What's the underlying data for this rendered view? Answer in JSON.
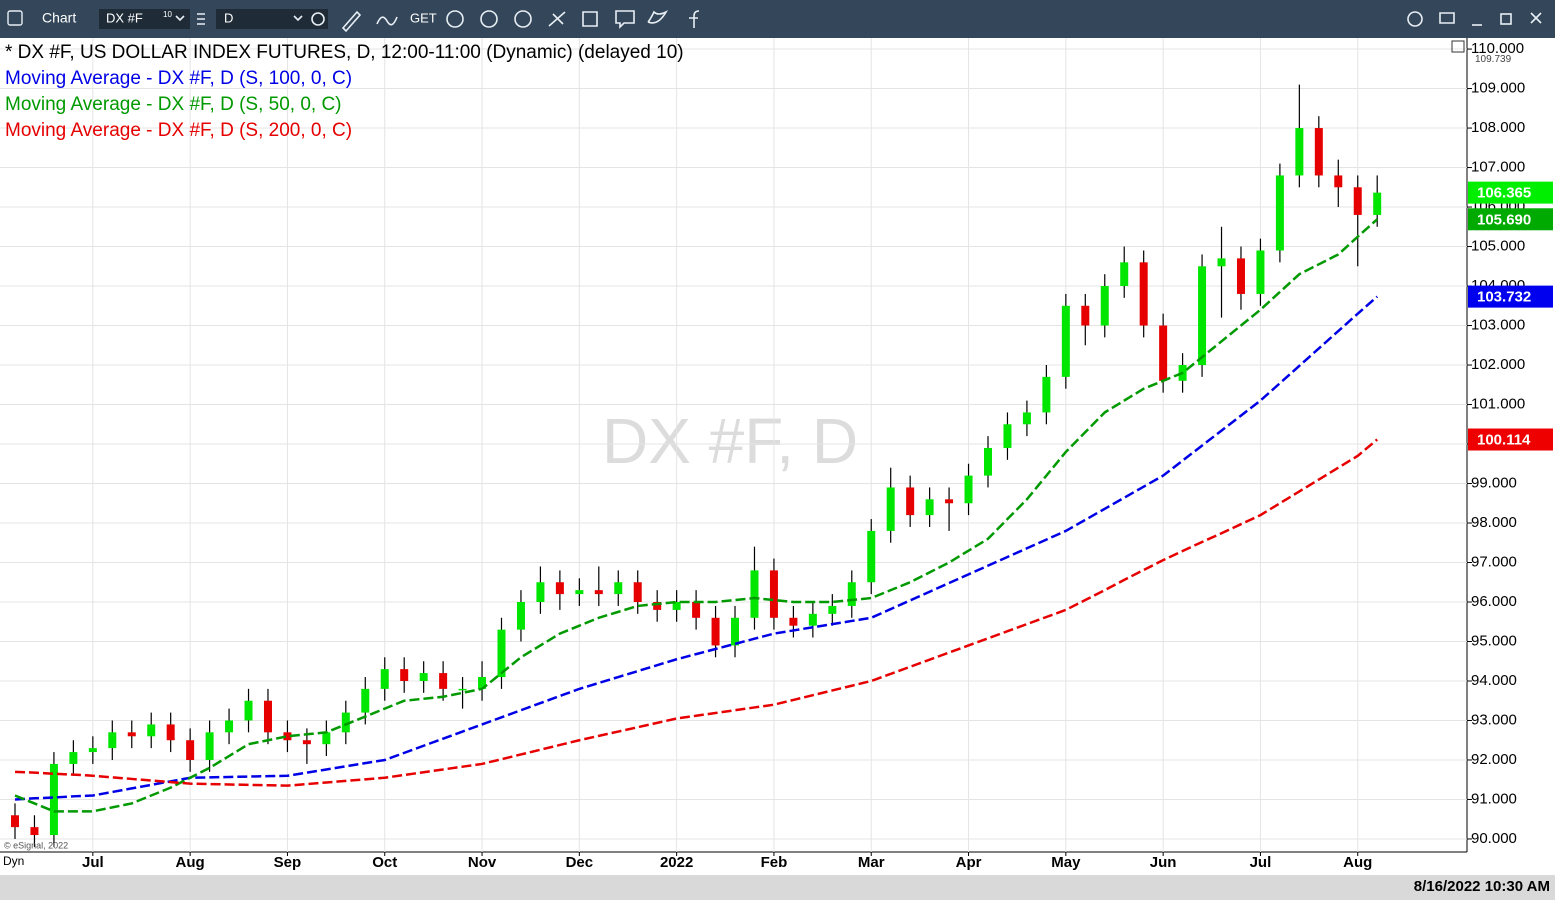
{
  "ui": {
    "window_title": "Chart",
    "symbol": "DX #F",
    "symbol_sup": "10",
    "interval": "D",
    "get_label": "GET",
    "timestamp": "8/16/2022 10:30 AM",
    "copyright": "© eSignal, 2022",
    "session_label": "Dyn"
  },
  "chart_data": {
    "type": "candlestick",
    "title": "* DX #F, US DOLLAR INDEX FUTURES, D, 12:00-11:00 (Dynamic) (delayed 10)",
    "watermark": "DX #F, D",
    "categories": [
      null,
      null,
      null,
      null,
      "Jul",
      null,
      null,
      null,
      null,
      "Aug",
      null,
      null,
      null,
      null,
      "Sep",
      null,
      null,
      null,
      null,
      "Oct",
      null,
      null,
      null,
      null,
      "Nov",
      null,
      null,
      null,
      null,
      "Dec",
      null,
      null,
      null,
      null,
      "2022",
      null,
      null,
      null,
      null,
      "Feb",
      null,
      null,
      null,
      null,
      "Mar",
      null,
      null,
      null,
      null,
      "Apr",
      null,
      null,
      null,
      null,
      "May",
      null,
      null,
      null,
      null,
      "Jun",
      null,
      null,
      null,
      null,
      "Jul",
      null,
      null,
      null,
      null,
      "Aug",
      null
    ],
    "open": [
      90.6,
      90.3,
      90.1,
      91.9,
      92.2,
      92.3,
      92.7,
      92.6,
      92.9,
      92.5,
      92.0,
      92.7,
      93.0,
      93.5,
      92.7,
      92.5,
      92.4,
      92.7,
      93.2,
      93.8,
      94.3,
      94.0,
      94.2,
      93.8,
      93.8,
      94.1,
      95.3,
      96.0,
      96.5,
      96.2,
      96.3,
      96.2,
      96.5,
      96.0,
      95.8,
      96.0,
      95.6,
      94.9,
      95.6,
      96.8,
      95.6,
      95.4,
      95.7,
      95.9,
      96.5,
      97.8,
      98.9,
      98.2,
      98.6,
      98.5,
      99.2,
      99.9,
      100.5,
      100.8,
      101.7,
      103.5,
      103.0,
      104.0,
      104.6,
      103.0,
      101.6,
      102.0,
      104.5,
      104.7,
      103.8,
      104.9,
      106.8,
      108.0,
      106.8,
      106.5,
      105.8
    ],
    "high": [
      90.9,
      90.6,
      92.2,
      92.5,
      92.6,
      93.0,
      93.0,
      93.2,
      93.2,
      92.8,
      93.0,
      93.3,
      93.8,
      93.8,
      93.0,
      92.8,
      93.0,
      93.5,
      94.1,
      94.6,
      94.6,
      94.5,
      94.5,
      94.1,
      94.5,
      95.6,
      96.3,
      96.9,
      96.8,
      96.6,
      96.9,
      96.8,
      96.8,
      96.3,
      96.3,
      96.3,
      95.9,
      95.9,
      97.4,
      97.1,
      95.9,
      96.0,
      96.2,
      96.8,
      98.1,
      99.4,
      99.2,
      98.9,
      98.9,
      99.5,
      100.2,
      100.8,
      101.1,
      102.0,
      103.8,
      103.8,
      104.3,
      105.0,
      104.9,
      103.3,
      102.3,
      104.8,
      105.5,
      105.0,
      105.2,
      107.1,
      109.1,
      108.3,
      107.2,
      106.8,
      106.8
    ],
    "low": [
      90.0,
      89.8,
      89.8,
      91.6,
      91.9,
      92.0,
      92.3,
      92.3,
      92.2,
      91.7,
      91.7,
      92.4,
      92.7,
      92.4,
      92.2,
      91.9,
      92.1,
      92.4,
      92.9,
      93.5,
      93.7,
      93.7,
      93.5,
      93.3,
      93.5,
      93.8,
      95.0,
      95.7,
      95.8,
      95.9,
      95.9,
      95.9,
      95.7,
      95.5,
      95.5,
      95.3,
      94.6,
      94.6,
      95.3,
      95.3,
      95.1,
      95.1,
      95.4,
      95.6,
      96.2,
      97.5,
      97.9,
      97.9,
      97.8,
      98.2,
      98.9,
      99.6,
      100.2,
      100.5,
      101.4,
      102.5,
      102.7,
      103.7,
      102.7,
      101.3,
      101.3,
      101.7,
      103.2,
      103.4,
      103.5,
      104.6,
      106.5,
      106.5,
      106.0,
      104.5,
      105.5
    ],
    "close": [
      90.3,
      90.1,
      91.9,
      92.2,
      92.3,
      92.7,
      92.6,
      92.9,
      92.5,
      92.0,
      92.7,
      93.0,
      93.5,
      92.7,
      92.5,
      92.4,
      92.7,
      93.2,
      93.8,
      94.3,
      94.0,
      94.2,
      93.8,
      93.8,
      94.1,
      95.3,
      96.0,
      96.5,
      96.2,
      96.3,
      96.2,
      96.5,
      96.0,
      95.8,
      96.0,
      95.6,
      94.9,
      95.6,
      96.8,
      95.6,
      95.4,
      95.7,
      95.9,
      96.5,
      97.8,
      98.9,
      98.2,
      98.6,
      98.5,
      99.2,
      99.9,
      100.5,
      100.8,
      101.7,
      103.5,
      103.0,
      104.0,
      104.6,
      103.0,
      101.6,
      102.0,
      104.5,
      104.7,
      103.8,
      104.9,
      106.8,
      108.0,
      106.8,
      106.5,
      105.8,
      106.365
    ],
    "up_color": "#00e600",
    "down_color": "#e60000",
    "series": [
      {
        "name": "Moving Average - DX #F, D (S, 100, 0, C)",
        "color": "#0000e6",
        "values": [
          91.0,
          91.03,
          91.05,
          91.08,
          91.1,
          91.19,
          91.28,
          91.37,
          91.46,
          91.55,
          91.56,
          91.57,
          91.58,
          91.59,
          91.6,
          91.68,
          91.76,
          91.84,
          91.92,
          92.0,
          92.18,
          92.36,
          92.54,
          92.72,
          92.9,
          93.08,
          93.26,
          93.44,
          93.62,
          93.8,
          93.95,
          94.1,
          94.25,
          94.4,
          94.55,
          94.68,
          94.81,
          94.94,
          95.07,
          95.2,
          95.28,
          95.36,
          95.44,
          95.52,
          95.6,
          95.82,
          96.04,
          96.26,
          96.48,
          96.7,
          96.92,
          97.14,
          97.36,
          97.58,
          97.8,
          98.08,
          98.36,
          98.64,
          98.92,
          99.2,
          99.58,
          99.96,
          100.34,
          100.72,
          101.1,
          101.54,
          101.98,
          102.42,
          102.86,
          103.3,
          103.732
        ]
      },
      {
        "name": "Moving Average - DX #F, D (S, 50, 0, C)",
        "color": "#009900",
        "values": [
          91.1,
          90.9,
          90.7,
          90.7,
          90.7,
          90.8,
          90.9,
          91.1,
          91.3,
          91.55,
          91.8,
          92.1,
          92.4,
          92.5,
          92.6,
          92.65,
          92.7,
          92.9,
          93.1,
          93.3,
          93.5,
          93.55,
          93.6,
          93.7,
          93.8,
          94.2,
          94.6,
          94.9,
          95.2,
          95.4,
          95.6,
          95.75,
          95.9,
          95.95,
          96.0,
          96.0,
          96.0,
          96.05,
          96.1,
          96.05,
          96.0,
          96.0,
          96.0,
          96.05,
          96.1,
          96.3,
          96.5,
          96.75,
          97.0,
          97.3,
          97.6,
          98.1,
          98.6,
          99.2,
          99.8,
          100.3,
          100.8,
          101.1,
          101.4,
          101.6,
          101.8,
          102.2,
          102.6,
          103.0,
          103.4,
          103.85,
          104.3,
          104.55,
          104.8,
          105.25,
          105.69
        ]
      },
      {
        "name": "Moving Average - DX #F, D (S, 200, 0, C)",
        "color": "#e60000",
        "values": [
          91.7,
          91.68,
          91.65,
          91.63,
          91.6,
          91.56,
          91.52,
          91.48,
          91.44,
          91.4,
          91.39,
          91.38,
          91.37,
          91.36,
          91.35,
          91.39,
          91.43,
          91.47,
          91.51,
          91.55,
          91.62,
          91.69,
          91.76,
          91.83,
          91.9,
          92.02,
          92.14,
          92.26,
          92.38,
          92.5,
          92.61,
          92.72,
          92.83,
          92.94,
          93.05,
          93.12,
          93.19,
          93.26,
          93.33,
          93.4,
          93.52,
          93.64,
          93.76,
          93.88,
          94.0,
          94.18,
          94.36,
          94.54,
          94.72,
          94.9,
          95.08,
          95.26,
          95.44,
          95.62,
          95.8,
          96.05,
          96.3,
          96.56,
          96.81,
          97.06,
          97.29,
          97.52,
          97.74,
          97.97,
          98.2,
          98.5,
          98.8,
          99.1,
          99.4,
          99.7,
          100.114
        ]
      }
    ],
    "ylim": [
      89.67,
      110.28
    ],
    "yticks": [
      {
        "value": 90,
        "label": "90.000"
      },
      {
        "value": 91,
        "label": "91.000"
      },
      {
        "value": 92,
        "label": "92.000"
      },
      {
        "value": 93,
        "label": "93.000"
      },
      {
        "value": 94,
        "label": "94.000"
      },
      {
        "value": 95,
        "label": "95.000"
      },
      {
        "value": 96,
        "label": "96.000"
      },
      {
        "value": 97,
        "label": "97.000"
      },
      {
        "value": 98,
        "label": "98.000"
      },
      {
        "value": 99,
        "label": "99.000"
      },
      {
        "value": 100,
        "label": "100.000"
      },
      {
        "value": 101,
        "label": "101.000"
      },
      {
        "value": 102,
        "label": "102.000"
      },
      {
        "value": 103,
        "label": "103.000"
      },
      {
        "value": 104,
        "label": "104.000"
      },
      {
        "value": 105,
        "label": "105.000"
      },
      {
        "value": 106,
        "label": "106.000"
      },
      {
        "value": 107,
        "label": "107.000"
      },
      {
        "value": 108,
        "label": "108.000"
      },
      {
        "value": 109,
        "label": "109.000"
      },
      {
        "value": 110,
        "label": "110.000"
      }
    ],
    "range_high": 109.739,
    "price_badges": [
      {
        "value": 106.365,
        "label": "106.365",
        "color": "#00ee00"
      },
      {
        "value": 105.69,
        "label": "105.690",
        "color": "#00aa00"
      },
      {
        "value": 103.732,
        "label": "103.732",
        "color": "#0000ee"
      },
      {
        "value": 100.114,
        "label": "100.114",
        "color": "#ee0000"
      }
    ],
    "grid": true
  }
}
